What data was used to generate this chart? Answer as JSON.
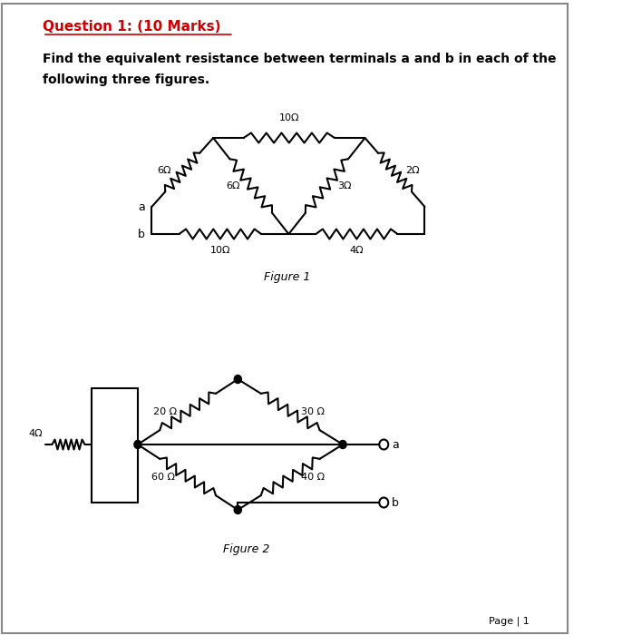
{
  "title": "Question 1: (10 Marks)",
  "subtitle": "Find the equivalent resistance between terminals a and b in each of the\nfollowing three figures.",
  "fig1_caption": "Figure 1",
  "fig2_caption": "Figure 2",
  "page_label": "Page | 1",
  "background": "#ffffff",
  "text_color": "#000000",
  "title_color": "#cc0000",
  "line_color": "#000000",
  "font_size_title": 11,
  "font_size_body": 10,
  "font_size_caption": 9,
  "font_size_label": 9
}
